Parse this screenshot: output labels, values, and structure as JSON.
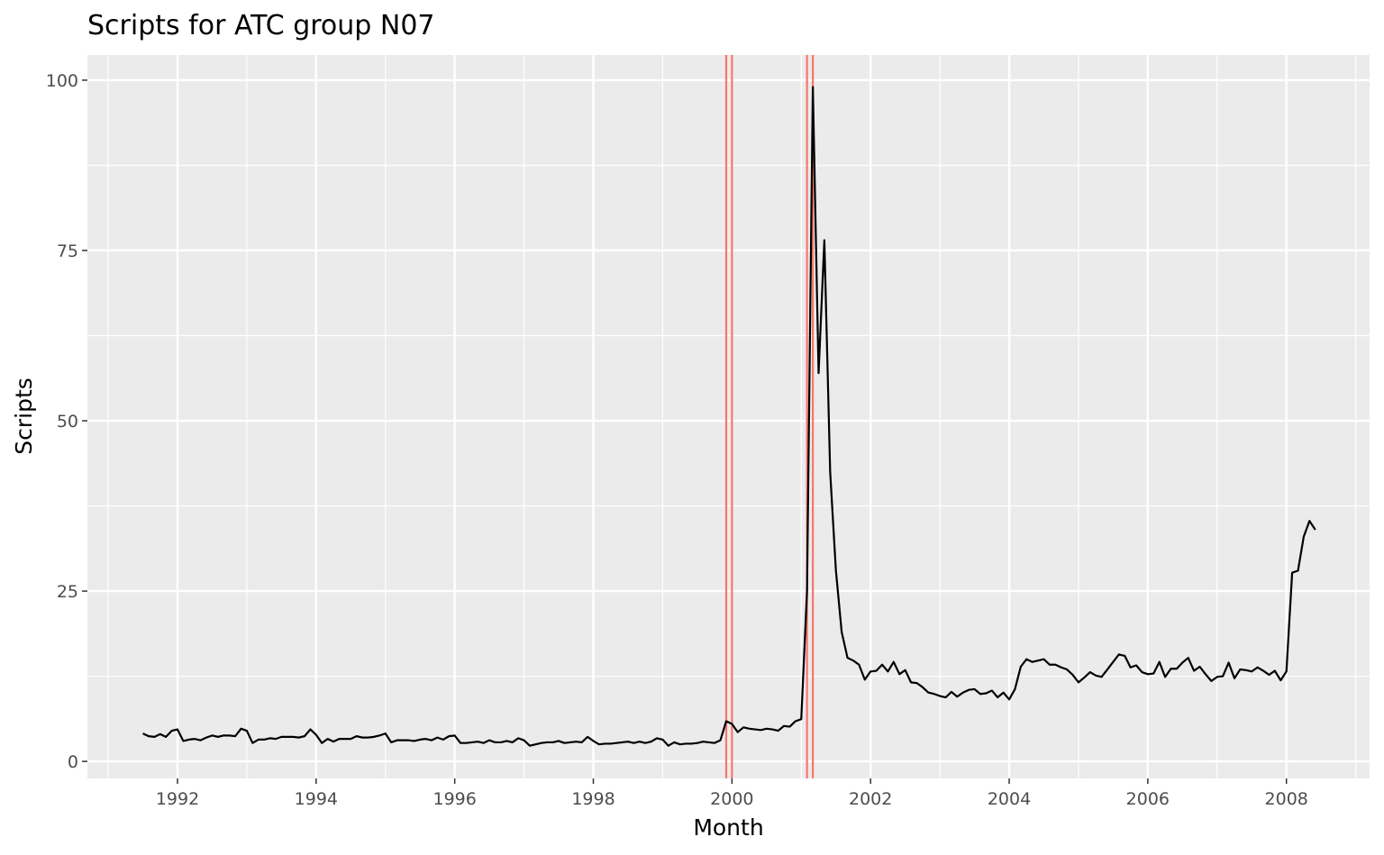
{
  "chart_data": {
    "type": "line",
    "title": "Scripts for ATC group N07",
    "xlabel": "Month",
    "ylabel": "Scripts",
    "xlim": [
      1990.7,
      2009.2
    ],
    "ylim": [
      -2.5,
      103.7
    ],
    "x_ticks": [
      1992,
      1994,
      1996,
      1998,
      2000,
      2002,
      2004,
      2006,
      2008
    ],
    "x_tick_labels": [
      "1992",
      "1994",
      "1996",
      "1998",
      "2000",
      "2002",
      "2004",
      "2006",
      "2008"
    ],
    "y_ticks": [
      0,
      25,
      50,
      75,
      100
    ],
    "y_tick_labels": [
      "0",
      "25",
      "50",
      "75",
      "100"
    ],
    "grid": true,
    "panel_background": "#ebebeb",
    "grid_color": "#ffffff",
    "line_color": "#000000",
    "vline_color": "#f8766d",
    "vlines": [
      1999.917,
      2000.0,
      2001.083,
      2001.167
    ],
    "series": [
      {
        "x": [
          1991.5,
          1991.583,
          1991.667,
          1991.75,
          1991.833,
          1991.917,
          1992.0,
          1992.083,
          1992.167,
          1992.25,
          1992.333,
          1992.417,
          1992.5,
          1992.583,
          1992.667,
          1992.75,
          1992.833,
          1992.917,
          1993.0,
          1993.083,
          1993.167,
          1993.25,
          1993.333,
          1993.417,
          1993.5,
          1993.583,
          1993.667,
          1993.75,
          1993.833,
          1993.917,
          1994.0,
          1994.083,
          1994.167,
          1994.25,
          1994.333,
          1994.417,
          1994.5,
          1994.583,
          1994.667,
          1994.75,
          1994.833,
          1994.917,
          1995.0,
          1995.083,
          1995.167,
          1995.25,
          1995.333,
          1995.417,
          1995.5,
          1995.583,
          1995.667,
          1995.75,
          1995.833,
          1995.917,
          1996.0,
          1996.083,
          1996.167,
          1996.25,
          1996.333,
          1996.417,
          1996.5,
          1996.583,
          1996.667,
          1996.75,
          1996.833,
          1996.917,
          1997.0,
          1997.083,
          1997.167,
          1997.25,
          1997.333,
          1997.417,
          1997.5,
          1997.583,
          1997.667,
          1997.75,
          1997.833,
          1997.917,
          1998.0,
          1998.083,
          1998.167,
          1998.25,
          1998.333,
          1998.417,
          1998.5,
          1998.583,
          1998.667,
          1998.75,
          1998.833,
          1998.917,
          1999.0,
          1999.083,
          1999.167,
          1999.25,
          1999.333,
          1999.417,
          1999.5,
          1999.583,
          1999.667,
          1999.75,
          1999.833,
          1999.917,
          2000.0,
          2000.083,
          2000.167,
          2000.25,
          2000.333,
          2000.417,
          2000.5,
          2000.583,
          2000.667,
          2000.75,
          2000.833,
          2000.917,
          2001.0,
          2001.083,
          2001.167,
          2001.25,
          2001.333,
          2001.417,
          2001.5,
          2001.583,
          2001.667,
          2001.75,
          2001.833,
          2001.917,
          2002.0,
          2002.083,
          2002.167,
          2002.25,
          2002.333,
          2002.417,
          2002.5,
          2002.583,
          2002.667,
          2002.75,
          2002.833,
          2002.917,
          2003.0,
          2003.083,
          2003.167,
          2003.25,
          2003.333,
          2003.417,
          2003.5,
          2003.583,
          2003.667,
          2003.75,
          2003.833,
          2003.917,
          2004.0,
          2004.083,
          2004.167,
          2004.25,
          2004.333,
          2004.417,
          2004.5,
          2004.583,
          2004.667,
          2004.75,
          2004.833,
          2004.917,
          2005.0,
          2005.083,
          2005.167,
          2005.25,
          2005.333,
          2005.417,
          2005.5,
          2005.583,
          2005.667,
          2005.75,
          2005.833,
          2005.917,
          2006.0,
          2006.083,
          2006.167,
          2006.25,
          2006.333,
          2006.417,
          2006.5,
          2006.583,
          2006.667,
          2006.75,
          2006.833,
          2006.917,
          2007.0,
          2007.083,
          2007.167,
          2007.25,
          2007.333,
          2007.417,
          2007.5,
          2007.583,
          2007.667,
          2007.75,
          2007.833,
          2007.917,
          2008.0,
          2008.083,
          2008.167,
          2008.25,
          2008.333,
          2008.417
        ],
        "values": [
          4.1,
          3.7,
          3.6,
          4.0,
          3.6,
          4.5,
          4.7,
          3.0,
          3.2,
          3.3,
          3.1,
          3.5,
          3.8,
          3.6,
          3.8,
          3.8,
          3.7,
          4.8,
          4.5,
          2.7,
          3.2,
          3.2,
          3.4,
          3.3,
          3.6,
          3.6,
          3.6,
          3.5,
          3.7,
          4.7,
          3.9,
          2.7,
          3.3,
          2.9,
          3.3,
          3.3,
          3.3,
          3.7,
          3.5,
          3.5,
          3.6,
          3.8,
          4.1,
          2.8,
          3.1,
          3.1,
          3.1,
          3.0,
          3.2,
          3.3,
          3.1,
          3.5,
          3.2,
          3.7,
          3.8,
          2.7,
          2.7,
          2.8,
          2.9,
          2.7,
          3.1,
          2.8,
          2.8,
          3.0,
          2.8,
          3.4,
          3.1,
          2.3,
          2.5,
          2.7,
          2.8,
          2.8,
          3.0,
          2.7,
          2.8,
          2.9,
          2.8,
          3.6,
          3.0,
          2.5,
          2.6,
          2.6,
          2.7,
          2.8,
          2.9,
          2.7,
          2.9,
          2.7,
          2.9,
          3.4,
          3.2,
          2.3,
          2.8,
          2.5,
          2.6,
          2.6,
          2.7,
          2.9,
          2.8,
          2.7,
          3.1,
          5.9,
          5.5,
          4.3,
          5.0,
          4.8,
          4.7,
          4.6,
          4.8,
          4.7,
          4.5,
          5.2,
          5.1,
          5.9,
          6.2,
          25.0,
          99.0,
          57.0,
          76.5,
          42.5,
          28.0,
          19.0,
          15.2,
          14.8,
          14.2,
          12.0,
          13.2,
          13.3,
          14.2,
          13.2,
          14.6,
          12.8,
          13.4,
          11.6,
          11.5,
          10.9,
          10.1,
          9.9,
          9.6,
          9.4,
          10.2,
          9.5,
          10.1,
          10.5,
          10.6,
          9.9,
          10.0,
          10.4,
          9.4,
          10.1,
          9.1,
          10.6,
          13.9,
          15.0,
          14.6,
          14.8,
          15.0,
          14.2,
          14.2,
          13.8,
          13.5,
          12.7,
          11.6,
          12.3,
          13.1,
          12.6,
          12.4,
          13.5,
          14.6,
          15.7,
          15.5,
          13.8,
          14.1,
          13.1,
          12.8,
          12.9,
          14.6,
          12.4,
          13.6,
          13.6,
          14.5,
          15.2,
          13.3,
          13.9,
          12.8,
          11.8,
          12.4,
          12.5,
          14.5,
          12.2,
          13.5,
          13.4,
          13.2,
          13.8,
          13.3,
          12.7,
          13.3,
          11.9,
          13.2,
          27.7,
          28.0,
          33.0,
          35.3,
          34.0
        ]
      }
    ]
  }
}
